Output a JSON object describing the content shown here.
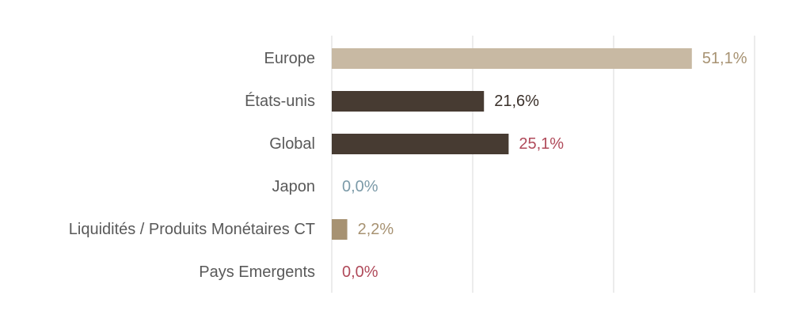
{
  "chart_data": {
    "type": "bar",
    "orientation": "horizontal",
    "categories": [
      "Europe",
      "États-unis",
      "Global",
      "Japon",
      "Liquidités / Produits Monétaires CT",
      "Pays Emergents"
    ],
    "values": [
      51.1,
      21.6,
      25.1,
      0.0,
      2.2,
      0.0
    ],
    "value_labels": [
      "51,1%",
      "21,6%",
      "25,1%",
      "0,0%",
      "2,2%",
      "0,0%"
    ],
    "bar_colors": [
      "#c8b9a3",
      "#473b32",
      "#473b32",
      "#7b9aa8",
      "#a79272",
      "#b04a5a"
    ],
    "label_colors": [
      "#a79272",
      "#3a302a",
      "#b04a5a",
      "#7b9aa8",
      "#a79272",
      "#b04a5a"
    ],
    "xlim": [
      0,
      60
    ],
    "grid": true,
    "title": "",
    "xlabel": "",
    "ylabel": ""
  }
}
